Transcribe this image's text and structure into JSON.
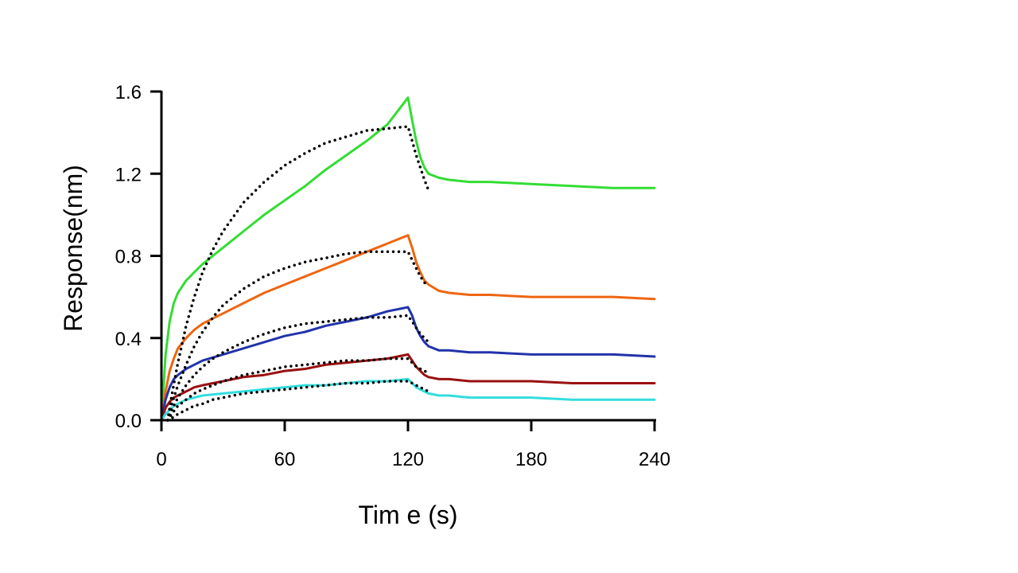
{
  "chart_data": {
    "type": "line",
    "title": "",
    "xlabel": "Tim e (s)",
    "ylabel": "Response(nm)",
    "xlim": [
      0,
      240
    ],
    "ylim": [
      0,
      1.6
    ],
    "xticks": [
      0,
      60,
      120,
      180,
      240
    ],
    "xtick_labels": [
      "0",
      "60",
      "120",
      "180",
      "240"
    ],
    "yticks": [
      0,
      0.4,
      0.8,
      1.2,
      1.6
    ],
    "ytick_labels": [
      "0.0",
      "0.4",
      "0.8",
      "1.2",
      "1.6"
    ],
    "grid": false,
    "legend": "none",
    "series": [
      {
        "color": "#33dd33",
        "style": "solid",
        "x": [
          0,
          2,
          4,
          6,
          8,
          12,
          16,
          20,
          30,
          40,
          50,
          60,
          70,
          80,
          90,
          100,
          110,
          120,
          122,
          124,
          126,
          128,
          130,
          135,
          140,
          150,
          160,
          180,
          200,
          220,
          240
        ],
        "y": [
          0.0,
          0.32,
          0.48,
          0.57,
          0.62,
          0.68,
          0.72,
          0.76,
          0.84,
          0.92,
          1.0,
          1.07,
          1.14,
          1.22,
          1.29,
          1.36,
          1.44,
          1.57,
          1.46,
          1.36,
          1.28,
          1.23,
          1.2,
          1.18,
          1.17,
          1.16,
          1.16,
          1.15,
          1.14,
          1.13,
          1.13
        ]
      },
      {
        "color": "#ee6611",
        "style": "solid",
        "x": [
          0,
          2,
          4,
          6,
          8,
          12,
          16,
          20,
          30,
          40,
          50,
          60,
          70,
          80,
          90,
          100,
          110,
          120,
          122,
          124,
          126,
          128,
          130,
          135,
          140,
          150,
          160,
          180,
          200,
          220,
          240
        ],
        "y": [
          0.0,
          0.14,
          0.24,
          0.3,
          0.35,
          0.4,
          0.44,
          0.47,
          0.52,
          0.57,
          0.62,
          0.66,
          0.7,
          0.74,
          0.78,
          0.82,
          0.86,
          0.9,
          0.84,
          0.77,
          0.72,
          0.68,
          0.66,
          0.63,
          0.62,
          0.61,
          0.61,
          0.6,
          0.6,
          0.6,
          0.59
        ]
      },
      {
        "color": "#2233aa",
        "style": "solid",
        "x": [
          0,
          2,
          4,
          6,
          8,
          12,
          16,
          20,
          30,
          40,
          50,
          60,
          70,
          80,
          90,
          100,
          110,
          120,
          122,
          124,
          126,
          128,
          130,
          135,
          140,
          150,
          160,
          180,
          200,
          220,
          240
        ],
        "y": [
          0.0,
          0.1,
          0.16,
          0.2,
          0.22,
          0.25,
          0.27,
          0.29,
          0.32,
          0.35,
          0.38,
          0.41,
          0.43,
          0.46,
          0.48,
          0.5,
          0.53,
          0.55,
          0.51,
          0.45,
          0.41,
          0.38,
          0.36,
          0.34,
          0.34,
          0.33,
          0.33,
          0.32,
          0.32,
          0.32,
          0.31
        ]
      },
      {
        "color": "#991111",
        "style": "solid",
        "x": [
          0,
          2,
          4,
          6,
          8,
          12,
          16,
          20,
          30,
          40,
          50,
          60,
          70,
          80,
          90,
          100,
          110,
          120,
          122,
          124,
          126,
          128,
          130,
          135,
          140,
          150,
          160,
          180,
          200,
          220,
          240
        ],
        "y": [
          0.0,
          0.06,
          0.09,
          0.11,
          0.12,
          0.14,
          0.16,
          0.17,
          0.19,
          0.21,
          0.22,
          0.24,
          0.25,
          0.27,
          0.28,
          0.29,
          0.3,
          0.32,
          0.29,
          0.26,
          0.24,
          0.22,
          0.21,
          0.2,
          0.2,
          0.19,
          0.19,
          0.19,
          0.18,
          0.18,
          0.18
        ]
      },
      {
        "color": "#33dddd",
        "style": "solid",
        "x": [
          0,
          2,
          4,
          6,
          8,
          12,
          16,
          20,
          30,
          40,
          50,
          60,
          70,
          80,
          90,
          100,
          110,
          120,
          122,
          124,
          126,
          128,
          130,
          135,
          140,
          150,
          160,
          180,
          200,
          220,
          240
        ],
        "y": [
          0.0,
          0.03,
          0.05,
          0.07,
          0.08,
          0.1,
          0.11,
          0.12,
          0.13,
          0.14,
          0.15,
          0.16,
          0.17,
          0.17,
          0.18,
          0.19,
          0.19,
          0.2,
          0.18,
          0.16,
          0.15,
          0.14,
          0.13,
          0.12,
          0.12,
          0.11,
          0.11,
          0.11,
          0.1,
          0.1,
          0.1
        ]
      },
      {
        "color": "#000000",
        "style": "dotted",
        "x": [
          3,
          5,
          8,
          12,
          16,
          20,
          25,
          30,
          40,
          50,
          60,
          70,
          80,
          90,
          100,
          110,
          120,
          122,
          124,
          126,
          128,
          130
        ],
        "y": [
          0.0,
          0.12,
          0.28,
          0.46,
          0.6,
          0.72,
          0.83,
          0.92,
          1.06,
          1.16,
          1.24,
          1.3,
          1.35,
          1.38,
          1.41,
          1.42,
          1.43,
          1.36,
          1.29,
          1.23,
          1.17,
          1.12
        ]
      },
      {
        "color": "#000000",
        "style": "dotted",
        "x": [
          3,
          5,
          8,
          12,
          16,
          20,
          25,
          30,
          40,
          50,
          60,
          70,
          80,
          90,
          100,
          110,
          120,
          122,
          124,
          126,
          128,
          130
        ],
        "y": [
          0.0,
          0.08,
          0.17,
          0.27,
          0.36,
          0.43,
          0.5,
          0.56,
          0.64,
          0.7,
          0.74,
          0.77,
          0.79,
          0.81,
          0.82,
          0.82,
          0.82,
          0.78,
          0.74,
          0.7,
          0.67,
          0.65
        ]
      },
      {
        "color": "#000000",
        "style": "dotted",
        "x": [
          3,
          5,
          8,
          12,
          16,
          20,
          25,
          30,
          40,
          50,
          60,
          70,
          80,
          90,
          100,
          110,
          120,
          122,
          124,
          126,
          128,
          130
        ],
        "y": [
          0.0,
          0.05,
          0.11,
          0.17,
          0.22,
          0.26,
          0.3,
          0.33,
          0.38,
          0.42,
          0.45,
          0.47,
          0.48,
          0.49,
          0.5,
          0.5,
          0.51,
          0.48,
          0.45,
          0.42,
          0.4,
          0.38
        ]
      },
      {
        "color": "#000000",
        "style": "dotted",
        "x": [
          3,
          5,
          8,
          12,
          16,
          20,
          25,
          30,
          40,
          50,
          60,
          70,
          80,
          90,
          100,
          110,
          120,
          122,
          124,
          126,
          128,
          130
        ],
        "y": [
          0.0,
          0.03,
          0.07,
          0.1,
          0.13,
          0.15,
          0.17,
          0.19,
          0.22,
          0.24,
          0.26,
          0.27,
          0.28,
          0.29,
          0.29,
          0.3,
          0.3,
          0.28,
          0.26,
          0.25,
          0.24,
          0.23
        ]
      },
      {
        "color": "#000000",
        "style": "dotted",
        "x": [
          3,
          5,
          8,
          12,
          16,
          20,
          25,
          30,
          40,
          50,
          60,
          70,
          80,
          90,
          100,
          110,
          120,
          122,
          124,
          126,
          128,
          130
        ],
        "y": [
          0.0,
          0.01,
          0.03,
          0.05,
          0.07,
          0.08,
          0.1,
          0.11,
          0.13,
          0.14,
          0.15,
          0.16,
          0.17,
          0.18,
          0.18,
          0.19,
          0.19,
          0.18,
          0.17,
          0.16,
          0.15,
          0.14
        ]
      }
    ]
  }
}
